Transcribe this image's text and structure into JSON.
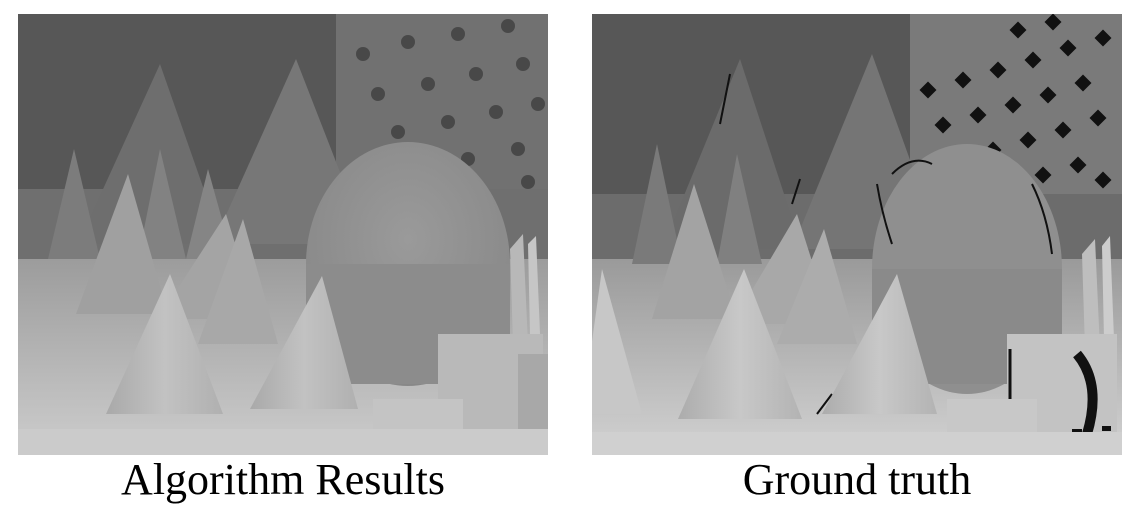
{
  "left_figure": {
    "caption": "Algorithm Results"
  },
  "right_figure": {
    "caption": "Ground truth"
  }
}
